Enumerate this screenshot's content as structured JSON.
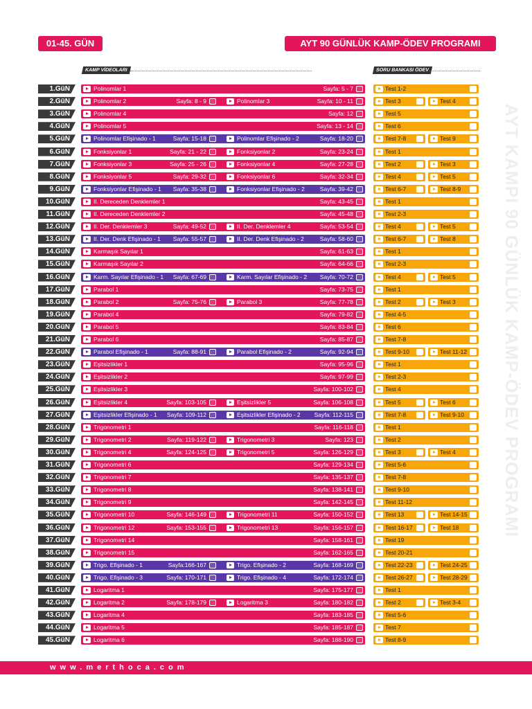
{
  "header": {
    "day_range": "01-45. GÜN",
    "title": "AYT 90 GÜNLÜK KAMP-ÖDEV PROGRAMI"
  },
  "sections": {
    "videos": "KAMP VİDEOLARI",
    "bank": "SORU BANKASI ÖDEV"
  },
  "side_text": "AYT KAMPI 90 GÜNLÜK KAMP-ÖDEV PROGRAMI",
  "footer": {
    "website": "www.merthoca.com"
  },
  "colors": {
    "main": "#e3165b",
    "purple": "#5a37a6",
    "orange": "#f7a70a",
    "dark": "#3a3a3a"
  },
  "days": [
    {
      "day": "1.GüN",
      "c": "r",
      "v": [
        {
          "t": "Polinomlar 1",
          "p": "Sayfa: 5 - 7"
        }
      ],
      "s": [
        "Test 1-2"
      ]
    },
    {
      "day": "2.GüN",
      "c": "r",
      "v": [
        {
          "t": "Polinomlar 2",
          "p": "Sayfa: 8 - 9"
        },
        {
          "t": "Polinomlar 3",
          "p": "Sayfa: 10 - 11"
        }
      ],
      "s": [
        "Test 3",
        "Test 4"
      ]
    },
    {
      "day": "3.GüN",
      "c": "r",
      "v": [
        {
          "t": "Polinomlar 4",
          "p": "Sayfa: 12"
        }
      ],
      "s": [
        "Test 5"
      ]
    },
    {
      "day": "4.GüN",
      "c": "r",
      "v": [
        {
          "t": "Polinomlar 5",
          "p": "Sayfa: 13 - 14"
        }
      ],
      "s": [
        "Test 6"
      ]
    },
    {
      "day": "5.GüN",
      "c": "p",
      "v": [
        {
          "t": "Polinomlar Efişinado - 1",
          "p": "Sayfa: 15-18"
        },
        {
          "t": "Polinomlar Efişinado - 2",
          "p": "Sayfa: 18-20"
        }
      ],
      "s": [
        "Test 7-8",
        "Test 9"
      ]
    },
    {
      "day": "6.GüN",
      "c": "r",
      "v": [
        {
          "t": "Fonksiyonlar 1",
          "p": "Sayfa: 21 - 22"
        },
        {
          "t": "Fonksiyonlar 2",
          "p": "Sayfa: 23-24"
        }
      ],
      "s": [
        "Test 1"
      ]
    },
    {
      "day": "7.GüN",
      "c": "r",
      "v": [
        {
          "t": "Fonksiyonlar 3",
          "p": "Sayfa: 25 - 26"
        },
        {
          "t": "Fonksiyonlar 4",
          "p": "Sayfa: 27-28"
        }
      ],
      "s": [
        "Test 2",
        "Test 3"
      ]
    },
    {
      "day": "8.GüN",
      "c": "r",
      "v": [
        {
          "t": "Fonksiyonlar 5",
          "p": "Sayfa: 29-32"
        },
        {
          "t": "Fonksiyonlar 6",
          "p": "Sayfa: 32-34"
        }
      ],
      "s": [
        "Test 4",
        "Test 5"
      ]
    },
    {
      "day": "9.GüN",
      "c": "p",
      "v": [
        {
          "t": "Fonksiyonlar Efişinado - 1",
          "p": "Sayfa: 35-38"
        },
        {
          "t": "Fonksiyonlar Efişinado - 2",
          "p": "Sayfa: 39-42"
        }
      ],
      "s": [
        "Test 6-7",
        "Test 8-9"
      ]
    },
    {
      "day": "10.GüN",
      "c": "r",
      "v": [
        {
          "t": "II. Dereceden Denklemler 1",
          "p": "Sayfa: 43-45"
        }
      ],
      "s": [
        "Test 1"
      ]
    },
    {
      "day": "11.GüN",
      "c": "r",
      "v": [
        {
          "t": "II. Dereceden Denklemler 2",
          "p": "Sayfa: 45-48"
        }
      ],
      "s": [
        "Test 2-3"
      ]
    },
    {
      "day": "12.GüN",
      "c": "r",
      "v": [
        {
          "t": "II. Der. Denklemler 3",
          "p": "Sayfa: 49-52"
        },
        {
          "t": "II. Der. Denklemler 4",
          "p": "Sayfa: 53-54"
        }
      ],
      "s": [
        "Test 4",
        "Test 5"
      ]
    },
    {
      "day": "13.GüN",
      "c": "p",
      "v": [
        {
          "t": "II. Der. Denk Efişinado - 1",
          "p": "Sayfa: 55-57"
        },
        {
          "t": "II. Der. Denk Efişinado - 2",
          "p": "Sayfa: 58-60"
        }
      ],
      "s": [
        "Test 6-7",
        "Test 8"
      ]
    },
    {
      "day": "14.GüN",
      "c": "r",
      "v": [
        {
          "t": "Karmaşık Sayılar 1",
          "p": "Sayfa: 61-63"
        }
      ],
      "s": [
        "Test 1"
      ]
    },
    {
      "day": "15.GüN",
      "c": "r",
      "v": [
        {
          "t": "Karmaşık Sayılar 2",
          "p": "Sayfa: 64-66"
        }
      ],
      "s": [
        "Test 2-3"
      ]
    },
    {
      "day": "16.GüN",
      "c": "p",
      "v": [
        {
          "t": "Karm. Sayılar Efişinado - 1",
          "p": "Sayfa: 67-69"
        },
        {
          "t": "Karm. Sayılar Efişinado - 2",
          "p": "Sayfa: 70-72"
        }
      ],
      "s": [
        "Test 4",
        "Test 5"
      ]
    },
    {
      "day": "17.GüN",
      "c": "r",
      "v": [
        {
          "t": "Parabol 1",
          "p": "Sayfa: 73-75"
        }
      ],
      "s": [
        "Test 1"
      ]
    },
    {
      "day": "18.GüN",
      "c": "r",
      "v": [
        {
          "t": "Parabol 2",
          "p": "Sayfa: 75-76"
        },
        {
          "t": "Parabol 3",
          "p": "Sayfa: 77-78"
        }
      ],
      "s": [
        "Test 2",
        "Test 3"
      ]
    },
    {
      "day": "19.GüN",
      "c": "r",
      "v": [
        {
          "t": "Parabol 4",
          "p": "Sayfa: 79-82"
        }
      ],
      "s": [
        "Test 4-5"
      ]
    },
    {
      "day": "20.GüN",
      "c": "r",
      "v": [
        {
          "t": "Parabol 5",
          "p": "Sayfa: 83-84"
        }
      ],
      "s": [
        "Test 6"
      ]
    },
    {
      "day": "21.GüN",
      "c": "r",
      "v": [
        {
          "t": "Parabol 6",
          "p": "Sayfa: 85-87"
        }
      ],
      "s": [
        "Test 7-8"
      ]
    },
    {
      "day": "22.GüN",
      "c": "p",
      "v": [
        {
          "t": "Parabol Efişinado - 1",
          "p": "Sayfa: 88-91"
        },
        {
          "t": "Parabol Efişinado - 2",
          "p": "Sayfa: 92-94"
        }
      ],
      "s": [
        "Test 9-10",
        "Test 11-12"
      ]
    },
    {
      "day": "23.GüN",
      "c": "r",
      "v": [
        {
          "t": "Eşitsizlikler 1",
          "p": "Sayfa: 95-96"
        }
      ],
      "s": [
        "Test 1"
      ]
    },
    {
      "day": "24.GüN",
      "c": "r",
      "v": [
        {
          "t": "Eşitsizlikler 2",
          "p": "Sayfa: 97-99"
        }
      ],
      "s": [
        "Test 2-3"
      ]
    },
    {
      "day": "25.GüN",
      "c": "r",
      "v": [
        {
          "t": "Eşitsizlikler 3",
          "p": "Sayfa: 100-102"
        }
      ],
      "s": [
        "Test 4"
      ]
    },
    {
      "day": "26.GüN",
      "c": "r",
      "v": [
        {
          "t": "Eşitsizlikler 4",
          "p": "Sayfa: 103-105"
        },
        {
          "t": "Eşitsizlikler 5",
          "p": "Sayfa: 106-108"
        }
      ],
      "s": [
        "Test 5",
        "Test 6"
      ]
    },
    {
      "day": "27.GüN",
      "c": "p",
      "v": [
        {
          "t": "Eşitsizlikler Efişinado - 1",
          "p": "Sayfa: 109-112"
        },
        {
          "t": "Eşitsizlikler Efişinado - 2",
          "p": "Sayfa: 112-115"
        }
      ],
      "s": [
        "Test 7-8",
        "Test 9-10"
      ]
    },
    {
      "day": "28.GüN",
      "c": "r",
      "v": [
        {
          "t": "Trigonometri 1",
          "p": "Sayfa: 116-118"
        }
      ],
      "s": [
        "Test 1"
      ]
    },
    {
      "day": "29.GüN",
      "c": "r",
      "v": [
        {
          "t": "Trigonometri 2",
          "p": "Sayfa: 119-122"
        },
        {
          "t": "Trigonometri 3",
          "p": "Sayfa: 123"
        }
      ],
      "s": [
        "Test 2"
      ]
    },
    {
      "day": "30.GüN",
      "c": "r",
      "v": [
        {
          "t": "Trigonometri 4",
          "p": "Sayfa: 124-125"
        },
        {
          "t": "Trigonometri 5",
          "p": "Sayfa: 126-129"
        }
      ],
      "s": [
        "Test 3",
        "Test 4"
      ]
    },
    {
      "day": "31.GüN",
      "c": "r",
      "v": [
        {
          "t": "Trigonometri 6",
          "p": "Sayfa: 129-134"
        }
      ],
      "s": [
        "Test 5-6"
      ]
    },
    {
      "day": "32.GüN",
      "c": "r",
      "v": [
        {
          "t": "Trigonometri 7",
          "p": "Sayfa: 135-137"
        }
      ],
      "s": [
        "Test 7-8"
      ]
    },
    {
      "day": "33.GüN",
      "c": "r",
      "v": [
        {
          "t": "Trigonometri 8",
          "p": "Sayfa: 138-141"
        }
      ],
      "s": [
        "Test 9-10"
      ]
    },
    {
      "day": "34.GüN",
      "c": "r",
      "v": [
        {
          "t": "Trigonometri 9",
          "p": "Sayfa: 142-145"
        }
      ],
      "s": [
        "Test 11-12"
      ]
    },
    {
      "day": "35.GüN",
      "c": "r",
      "v": [
        {
          "t": "Trigonometri 10",
          "p": "Sayfa: 146-149"
        },
        {
          "t": "Trigonometri 11",
          "p": "Sayfa: 150-152"
        }
      ],
      "s": [
        "Test 13",
        "Test 14-15"
      ]
    },
    {
      "day": "36.GüN",
      "c": "r",
      "v": [
        {
          "t": "Trigonometri 12",
          "p": "Sayfa: 153-155"
        },
        {
          "t": "Trigonometri 13",
          "p": "Sayfa: 156-157"
        }
      ],
      "s": [
        "Test 16-17",
        "Test 18"
      ]
    },
    {
      "day": "37.GüN",
      "c": "r",
      "v": [
        {
          "t": "Trigonometri 14",
          "p": "Sayfa: 158-161"
        }
      ],
      "s": [
        "Test 19"
      ]
    },
    {
      "day": "38.GüN",
      "c": "r",
      "v": [
        {
          "t": "Trigonometri 15",
          "p": "Sayfa: 162-165"
        }
      ],
      "s": [
        "Test 20-21"
      ]
    },
    {
      "day": "39.GüN",
      "c": "p",
      "v": [
        {
          "t": "Trigo. Efişinado - 1",
          "p": "Sayfa:166-167"
        },
        {
          "t": "Trigo. Efişinado - 2",
          "p": "Sayfa: 168-169"
        }
      ],
      "s": [
        "Test 22-23",
        "Test 24-25"
      ]
    },
    {
      "day": "40.GüN",
      "c": "p",
      "v": [
        {
          "t": "Trigo. Efişinado - 3",
          "p": "Sayfa: 170-171"
        },
        {
          "t": "Trigo. Efişinado - 4",
          "p": "Sayfa: 172-174"
        }
      ],
      "s": [
        "Test 26-27",
        "Test 28-29"
      ]
    },
    {
      "day": "41.GüN",
      "c": "r",
      "v": [
        {
          "t": "Logaritma 1",
          "p": "Sayfa: 175-177"
        }
      ],
      "s": [
        "Test 1"
      ]
    },
    {
      "day": "42.GüN",
      "c": "r",
      "v": [
        {
          "t": "Logaritma 2",
          "p": "Sayfa: 178-179"
        },
        {
          "t": "Logaritma 3",
          "p": "Sayfa: 180-182"
        }
      ],
      "s": [
        "Test 2",
        "Test 3-4"
      ]
    },
    {
      "day": "43.GüN",
      "c": "r",
      "v": [
        {
          "t": "Logaritma 4",
          "p": "Sayfa: 183-185"
        }
      ],
      "s": [
        "Test 5-6"
      ]
    },
    {
      "day": "44.GüN",
      "c": "r",
      "v": [
        {
          "t": "Logaritma 5",
          "p": "Sayfa: 185-187"
        }
      ],
      "s": [
        "Test 7"
      ]
    },
    {
      "day": "45.GüN",
      "c": "r",
      "v": [
        {
          "t": "Logaritma 6",
          "p": "Sayfa: 188-190"
        }
      ],
      "s": [
        "Test 8-9"
      ]
    }
  ]
}
